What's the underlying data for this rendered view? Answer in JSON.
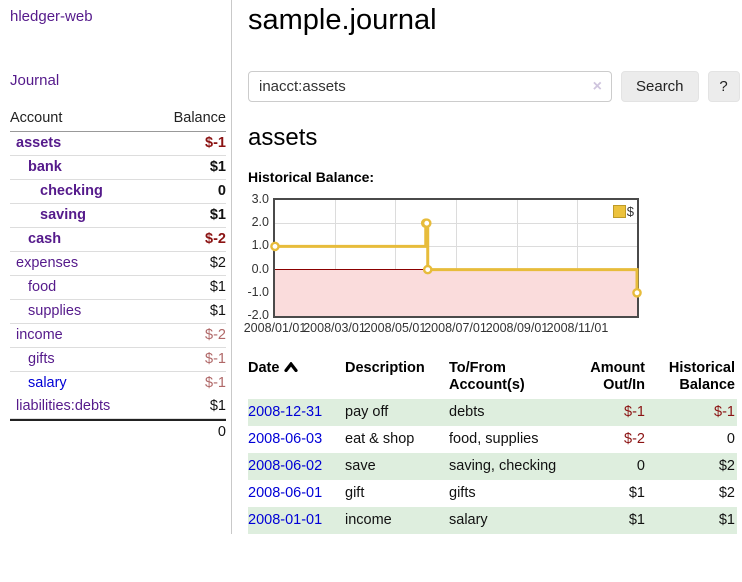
{
  "app": {
    "brand": "hledger-web"
  },
  "colors": {
    "link_visited": "#551a8b",
    "link_unvisited": "#0000d6",
    "negative_strong": "#8b1313",
    "negative_soft": "#b06868",
    "row_stripe_green": "#deeede",
    "chart_line": "#e7bc3b",
    "chart_negative_fill": "#fadcdc",
    "chart_zero_line": "#8b0000",
    "legend_swatch": "#ecc23d"
  },
  "sidebar": {
    "journal_link": "Journal",
    "accounts": {
      "header_account": "Account",
      "header_balance": "Balance",
      "rows": [
        {
          "name": "assets",
          "balance": "$-1",
          "indent": 1,
          "bold": true,
          "link_style": "visited"
        },
        {
          "name": "bank",
          "balance": "$1",
          "indent": 2,
          "bold": true,
          "link_style": "visited"
        },
        {
          "name": "checking",
          "balance": "0",
          "indent": 3,
          "bold": true,
          "link_style": "visited"
        },
        {
          "name": "saving",
          "balance": "$1",
          "indent": 3,
          "bold": true,
          "link_style": "visited"
        },
        {
          "name": "cash",
          "balance": "$-2",
          "indent": 2,
          "bold": true,
          "link_style": "visited"
        },
        {
          "name": "expenses",
          "balance": "$2",
          "indent": 1,
          "bold": false,
          "link_style": "visited"
        },
        {
          "name": "food",
          "balance": "$1",
          "indent": 2,
          "bold": false,
          "link_style": "visited"
        },
        {
          "name": "supplies",
          "balance": "$1",
          "indent": 2,
          "bold": false,
          "link_style": "visited"
        },
        {
          "name": "income",
          "balance": "$-2",
          "indent": 1,
          "bold": false,
          "link_style": "visited"
        },
        {
          "name": "gifts",
          "balance": "$-1",
          "indent": 2,
          "bold": false,
          "link_style": "visited"
        },
        {
          "name": "salary",
          "balance": "$-1",
          "indent": 2,
          "bold": false,
          "link_style": "unvisited"
        },
        {
          "name": "liabilities:debts",
          "balance": "$1",
          "indent": 1,
          "bold": false,
          "link_style": "visited"
        }
      ],
      "total": "0"
    }
  },
  "main": {
    "title": "sample.journal",
    "search": {
      "value": "inacct:assets",
      "clear_icon": "×",
      "button_label": "Search",
      "help_label": "?"
    },
    "account_heading": "assets",
    "chart_heading": "Historical Balance:"
  },
  "chart_data": {
    "type": "line",
    "step": true,
    "title": "Historical Balance:",
    "series": [
      {
        "name": "$",
        "points": [
          {
            "x": "2008-01-01",
            "y": 1
          },
          {
            "x": "2008-06-01",
            "y": 2
          },
          {
            "x": "2008-06-02",
            "y": 2
          },
          {
            "x": "2008-06-03",
            "y": 0
          },
          {
            "x": "2008-12-31",
            "y": -1
          }
        ]
      }
    ],
    "x_range": [
      "2008-01-01",
      "2008-12-31"
    ],
    "ylim": [
      -2,
      3
    ],
    "yticks": [
      "3.0",
      "2.0",
      "1.0",
      "0.0",
      "-1.0",
      "-2.0"
    ],
    "xtick_labels": [
      "2008/01/01",
      "2008/03/01",
      "2008/05/01",
      "2008/07/01",
      "2008/09/01",
      "2008/11/01"
    ],
    "xtick_dates": [
      "2008-01-01",
      "2008-03-01",
      "2008-05-01",
      "2008-07-01",
      "2008-09-01",
      "2008-11-01"
    ],
    "legend": {
      "label": "$",
      "position": "top-right"
    },
    "grid": true,
    "negative_region_shaded": true
  },
  "transactions": {
    "columns": [
      {
        "line1": "Date",
        "line2": "",
        "align": "left",
        "sorted": "ascending"
      },
      {
        "line1": "Description",
        "line2": "",
        "align": "left"
      },
      {
        "line1": "To/From",
        "line2": "Account(s)",
        "align": "left"
      },
      {
        "line1": "Amount",
        "line2": "Out/In",
        "align": "right"
      },
      {
        "line1": "Historical",
        "line2": "Balance",
        "align": "right"
      }
    ],
    "rows": [
      {
        "date": "2008-12-31",
        "description": "pay off",
        "accounts": "debts",
        "amount": "$-1",
        "balance": "$-1"
      },
      {
        "date": "2008-06-03",
        "description": "eat & shop",
        "accounts": "food, supplies",
        "amount": "$-2",
        "balance": "0"
      },
      {
        "date": "2008-06-02",
        "description": "save",
        "accounts": "saving, checking",
        "amount": "0",
        "balance": "$2"
      },
      {
        "date": "2008-06-01",
        "description": "gift",
        "accounts": "gifts",
        "amount": "$1",
        "balance": "$2"
      },
      {
        "date": "2008-01-01",
        "description": "income",
        "accounts": "salary",
        "amount": "$1",
        "balance": "$1"
      }
    ]
  }
}
